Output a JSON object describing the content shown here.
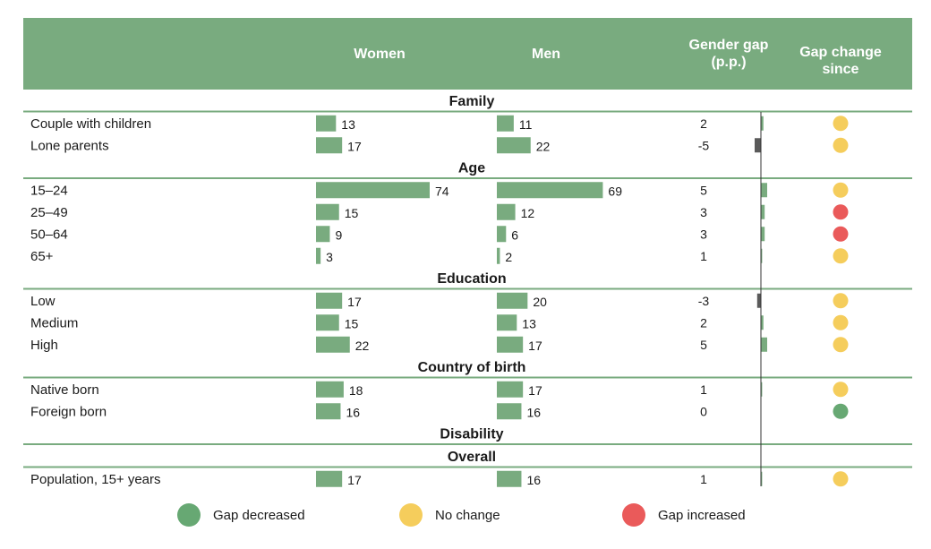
{
  "header": {
    "women": "Women",
    "men": "Men",
    "gap": "Gender gap (p.p.)",
    "change": "Gap change since"
  },
  "colors": {
    "header_bg": "#79ab7f",
    "bar": "#79ab7f",
    "gap_bar": "#5a5a5a",
    "decreased": "#67a873",
    "no_change": "#f5cd5c",
    "increased": "#ea5a5a"
  },
  "chart_data": {
    "type": "table",
    "columns": [
      "Women",
      "Men",
      "Gender gap (p.p.)",
      "Gap change since"
    ],
    "sections": [
      {
        "title": "Family",
        "rows": [
          {
            "label": "Couple with children",
            "women": 13,
            "men": 11,
            "gap": 2,
            "change": "no_change"
          },
          {
            "label": "Lone parents",
            "women": 17,
            "men": 22,
            "gap": -5,
            "change": "no_change"
          }
        ]
      },
      {
        "title": "Age",
        "rows": [
          {
            "label": "15–24",
            "women": 74,
            "men": 69,
            "gap": 5,
            "change": "no_change"
          },
          {
            "label": "25–49",
            "women": 15,
            "men": 12,
            "gap": 3,
            "change": "increased"
          },
          {
            "label": "50–64",
            "women": 9,
            "men": 6,
            "gap": 3,
            "change": "increased"
          },
          {
            "label": "65+",
            "women": 3,
            "men": 2,
            "gap": 1,
            "change": "no_change"
          }
        ]
      },
      {
        "title": "Education",
        "rows": [
          {
            "label": "Low",
            "women": 17,
            "men": 20,
            "gap": -3,
            "change": "no_change"
          },
          {
            "label": "Medium",
            "women": 15,
            "men": 13,
            "gap": 2,
            "change": "no_change"
          },
          {
            "label": "High",
            "women": 22,
            "men": 17,
            "gap": 5,
            "change": "no_change"
          }
        ]
      },
      {
        "title": "Country of birth",
        "rows": [
          {
            "label": "Native born",
            "women": 18,
            "men": 17,
            "gap": 1,
            "change": "no_change"
          },
          {
            "label": "Foreign born",
            "women": 16,
            "men": 16,
            "gap": 0,
            "change": "decreased"
          }
        ]
      },
      {
        "title": "Disability",
        "rows": []
      },
      {
        "title": "Overall",
        "rows": [
          {
            "label": "Population, 15+ years",
            "women": 17,
            "men": 16,
            "gap": 1,
            "change": "no_change"
          }
        ]
      }
    ]
  },
  "legend": {
    "decreased": "Gap decreased",
    "no_change": "No change",
    "increased": "Gap increased"
  }
}
